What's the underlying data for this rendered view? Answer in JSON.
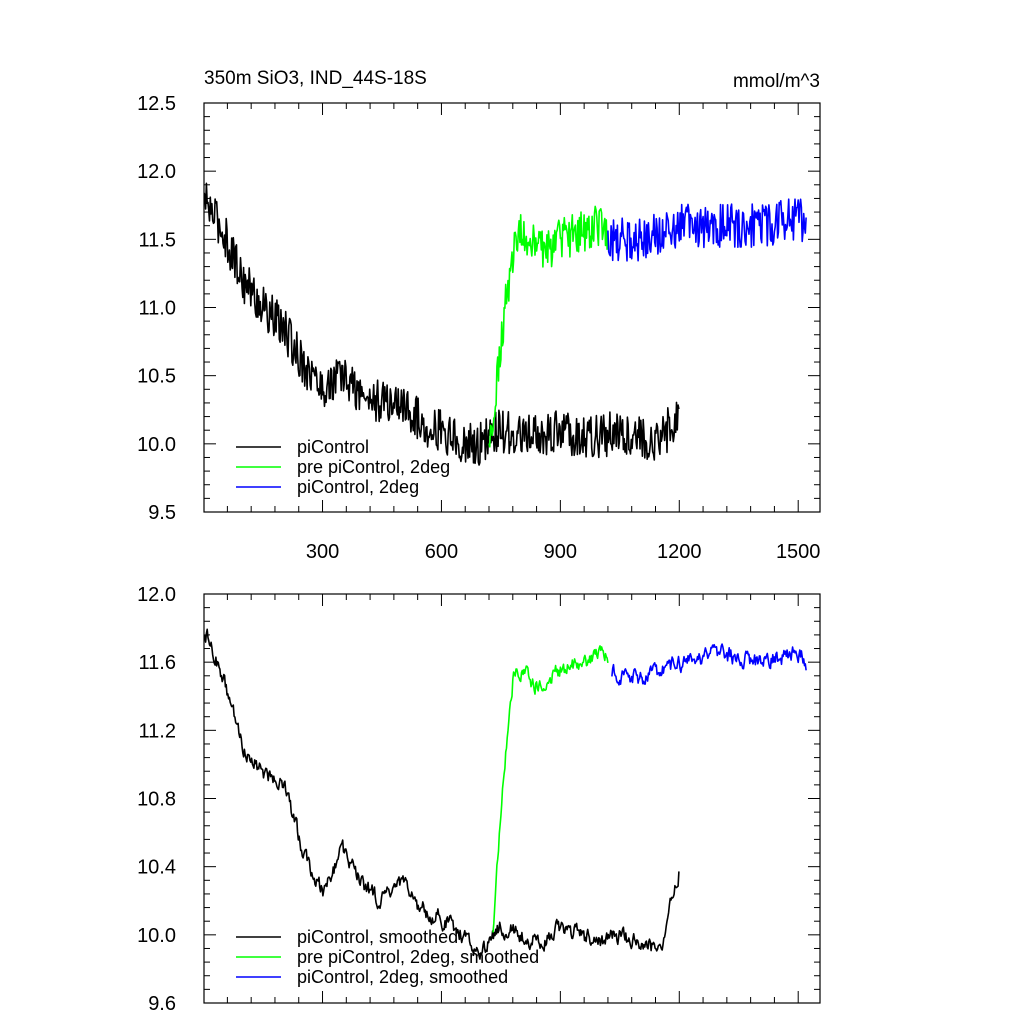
{
  "header": {
    "title": "350m SiO3, IND_44S-18S",
    "units": "mmol/m^3"
  },
  "colors": {
    "piControl": "#000000",
    "pre_piControl_2deg": "#00ff00",
    "piControl_2deg": "#0000ff"
  },
  "chart_data": [
    {
      "type": "line",
      "panel": "top",
      "title": "350m SiO3, IND_44S-18S",
      "units_label": "mmol/m^3",
      "xlabel": "",
      "ylabel": "",
      "xlim": [
        1,
        1555
      ],
      "ylim": [
        9.5,
        12.5
      ],
      "x_ticks": [
        300,
        600,
        900,
        1200,
        1500
      ],
      "x_tick_labels": [
        "300",
        "600",
        "900",
        "1200",
        "1500"
      ],
      "y_ticks": [
        9.5,
        10.0,
        10.5,
        11.0,
        11.5,
        12.0,
        12.5
      ],
      "y_tick_labels": [
        "9.5",
        "10.0",
        "10.5",
        "11.0",
        "11.5",
        "12.0",
        "12.5"
      ],
      "legend_position": "bottom-left",
      "series": [
        {
          "name": "piControl",
          "color": "#000000",
          "x": [
            1,
            50,
            100,
            150,
            200,
            250,
            300,
            350,
            400,
            450,
            500,
            550,
            600,
            650,
            700,
            750,
            800,
            850,
            900,
            950,
            1000,
            1050,
            1100,
            1150,
            1200
          ],
          "y": [
            11.8,
            11.55,
            11.2,
            11.0,
            10.85,
            10.6,
            10.4,
            10.5,
            10.35,
            10.3,
            10.3,
            10.15,
            10.1,
            10.0,
            10.0,
            10.1,
            10.05,
            10.05,
            10.1,
            10.05,
            10.05,
            10.1,
            10.05,
            10.0,
            10.25
          ]
        },
        {
          "name": "pre piControl, 2deg",
          "color": "#00ff00",
          "x": [
            720,
            740,
            760,
            780,
            800,
            850,
            900,
            950,
            1000,
            1020
          ],
          "y": [
            9.95,
            10.5,
            11.0,
            11.4,
            11.55,
            11.4,
            11.5,
            11.55,
            11.6,
            11.55
          ]
        },
        {
          "name": "piControl, 2deg",
          "color": "#0000ff",
          "x": [
            1020,
            1100,
            1200,
            1300,
            1400,
            1500,
            1520
          ],
          "y": [
            11.5,
            11.5,
            11.6,
            11.6,
            11.6,
            11.65,
            11.6
          ]
        }
      ]
    },
    {
      "type": "line",
      "panel": "bottom",
      "xlabel": "",
      "ylabel": "",
      "xlim": [
        1,
        1555
      ],
      "ylim": [
        9.6,
        12.0
      ],
      "x_ticks": [
        300,
        600,
        900,
        1200,
        1500
      ],
      "y_ticks": [
        9.6,
        10.0,
        10.4,
        10.8,
        11.2,
        11.6,
        12.0
      ],
      "y_tick_labels": [
        "9.6",
        "10.0",
        "10.4",
        "10.8",
        "11.2",
        "11.6",
        "12.0"
      ],
      "legend_position": "bottom-left",
      "series": [
        {
          "name": "piControl, smoothed",
          "color": "#000000",
          "x": [
            1,
            50,
            100,
            150,
            200,
            250,
            300,
            350,
            400,
            450,
            500,
            550,
            600,
            650,
            700,
            750,
            800,
            850,
            900,
            950,
            1000,
            1050,
            1100,
            1150,
            1200
          ],
          "y": [
            11.8,
            11.5,
            11.1,
            10.95,
            10.9,
            10.5,
            10.25,
            10.5,
            10.3,
            10.2,
            10.3,
            10.15,
            10.1,
            10.0,
            9.9,
            10.05,
            10.0,
            9.95,
            10.05,
            10.0,
            9.95,
            10.0,
            9.95,
            9.9,
            10.38
          ]
        },
        {
          "name": "pre piControl, 2deg, smoothed",
          "color": "#00ff00",
          "x": [
            730,
            745,
            760,
            780,
            800,
            850,
            900,
            950,
            1000,
            1020
          ],
          "y": [
            10.05,
            10.55,
            11.0,
            11.5,
            11.55,
            11.45,
            11.55,
            11.6,
            11.65,
            11.6
          ]
        },
        {
          "name": "piControl, 2deg, smoothed",
          "color": "#0000ff",
          "x": [
            1030,
            1100,
            1200,
            1300,
            1400,
            1500,
            1520
          ],
          "y": [
            11.55,
            11.5,
            11.6,
            11.65,
            11.6,
            11.65,
            11.6
          ]
        }
      ]
    }
  ]
}
